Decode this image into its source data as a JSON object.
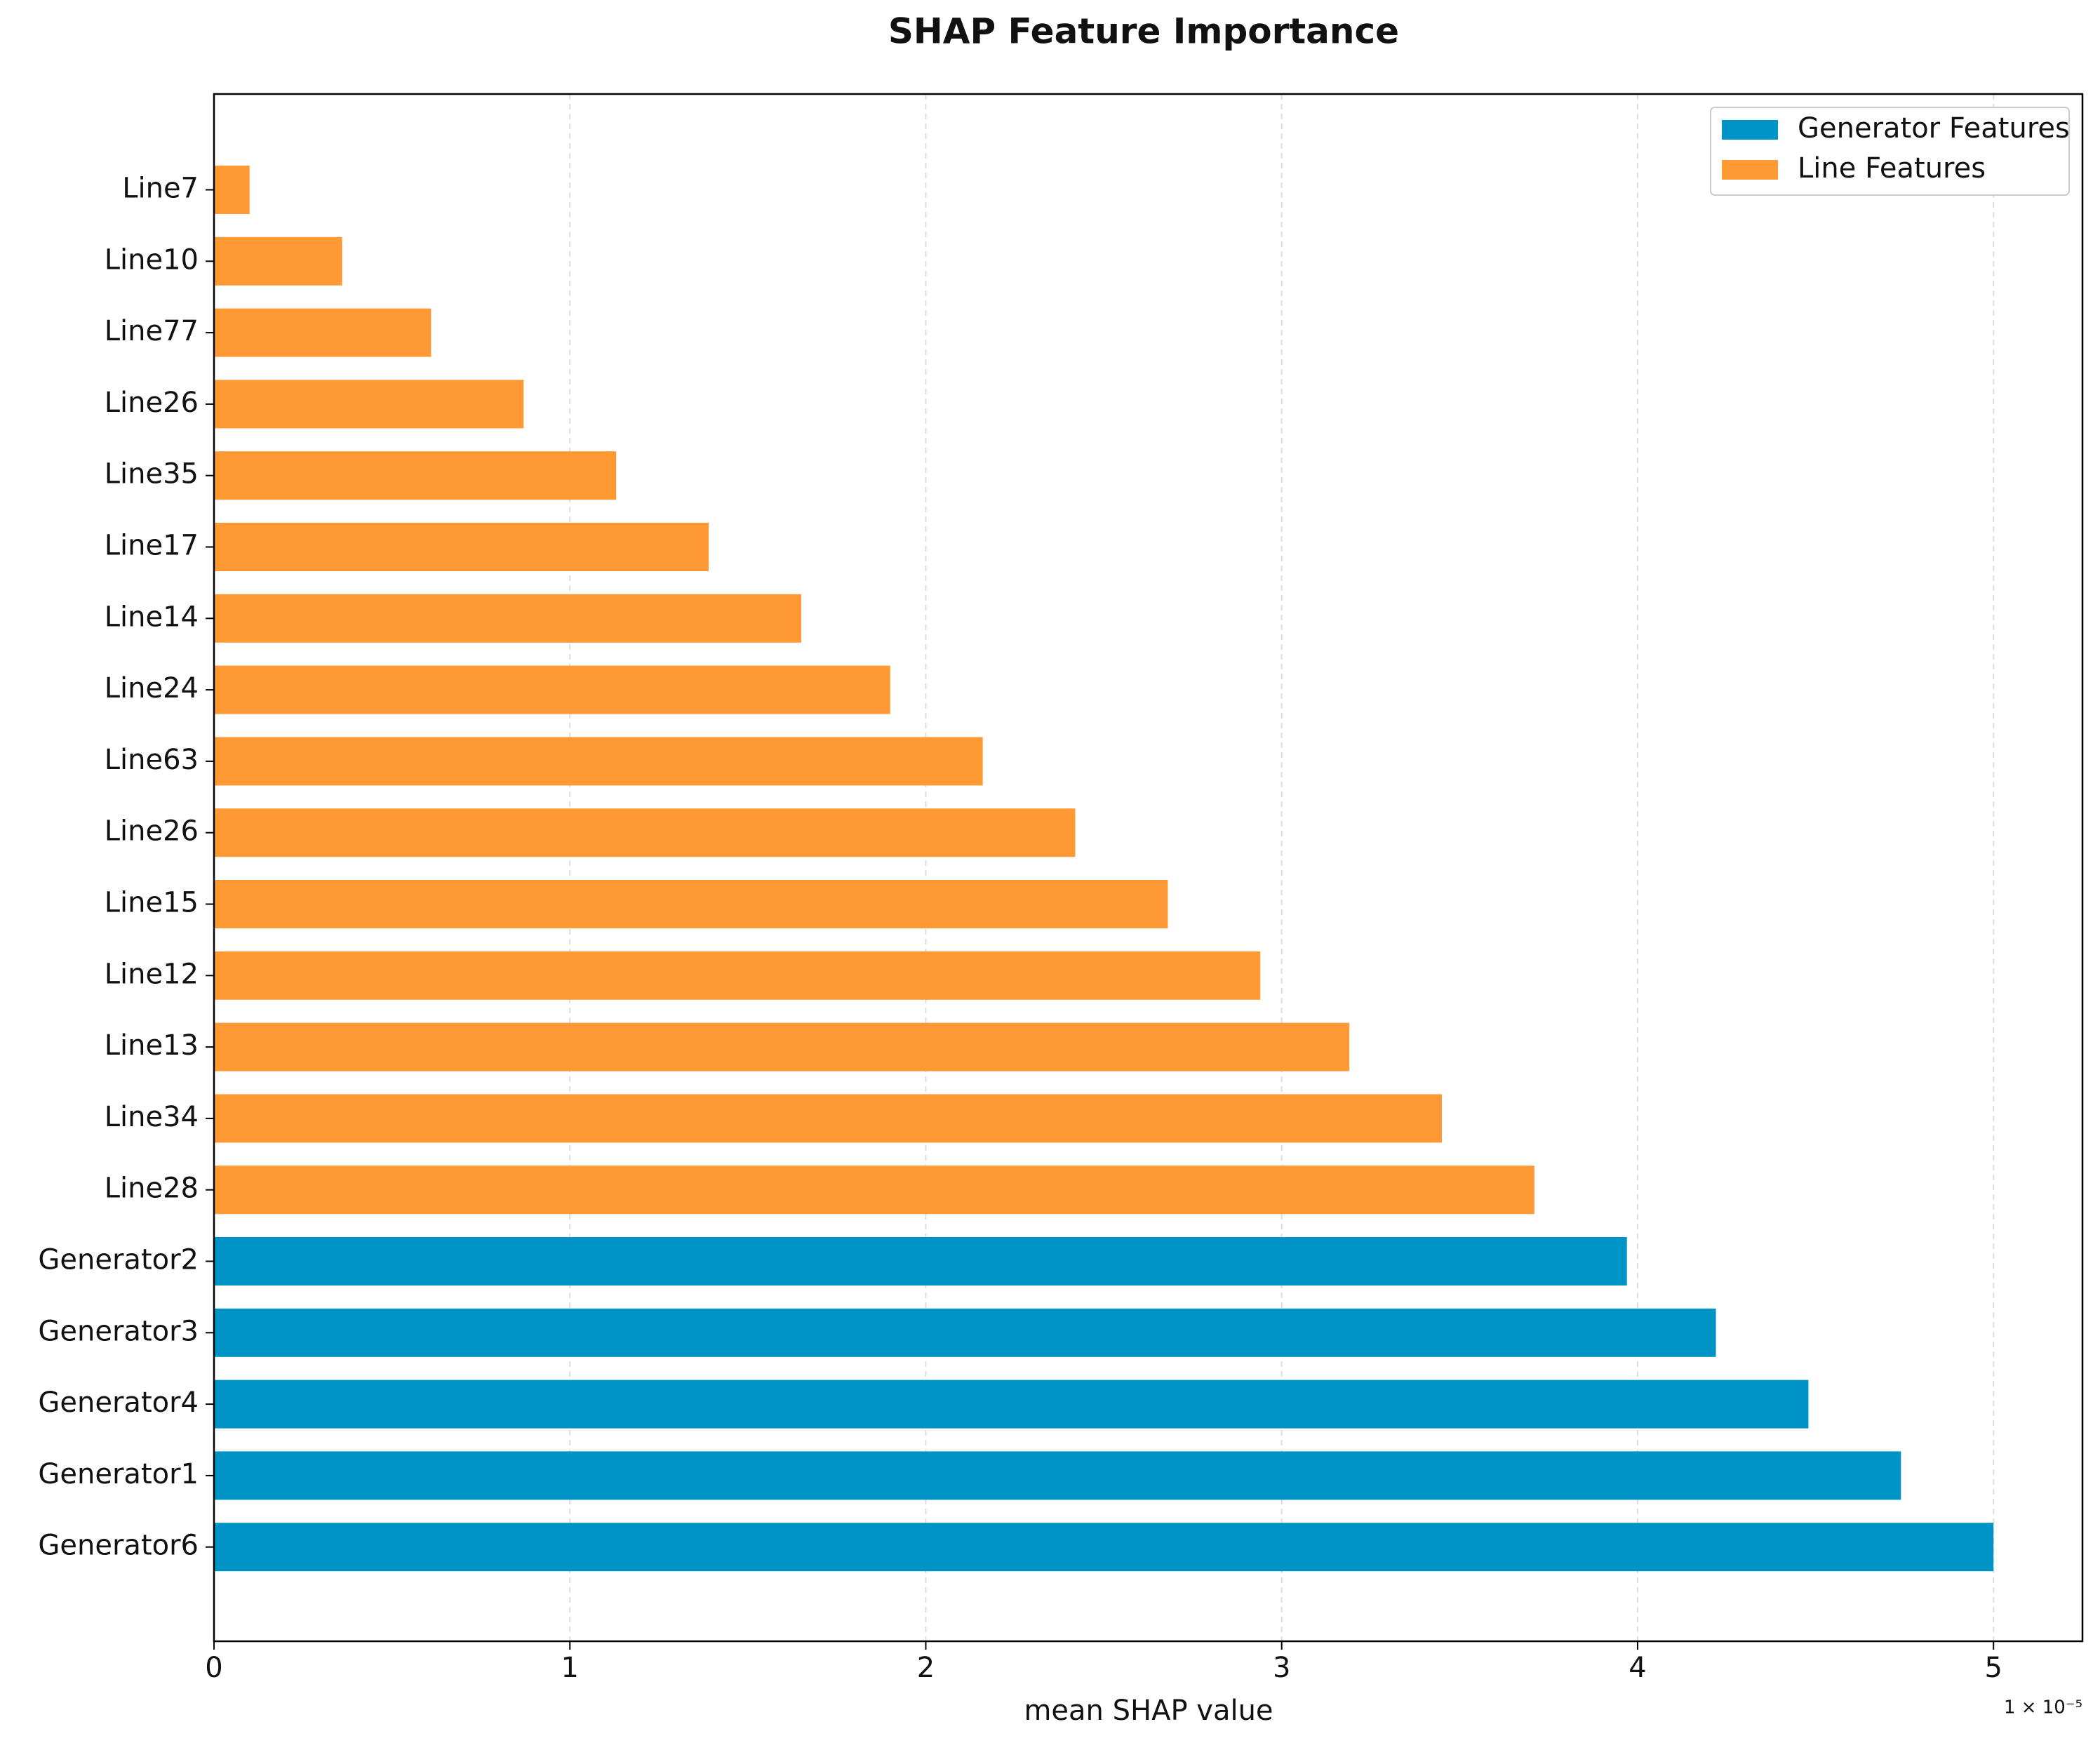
{
  "chart_data": {
    "type": "barh",
    "title": "SHAP Feature Importance",
    "x_label": "mean SHAP value",
    "x_multiplier": "1 × 10⁻⁵",
    "categories": [
      "Line7",
      "Line10",
      "Line77",
      "Line26",
      "Line35",
      "Line17",
      "Line14",
      "Line24",
      "Line63",
      "Line26",
      "Line15",
      "Line12",
      "Line13",
      "Line34",
      "Line28",
      "Generator2",
      "Generator3",
      "Generator4",
      "Generator1",
      "Generator6"
    ],
    "series": [
      {
        "name": "Generator Features",
        "color": "#0094c6",
        "values": [
          null,
          null,
          null,
          null,
          null,
          null,
          null,
          null,
          null,
          null,
          null,
          null,
          null,
          null,
          null,
          3.97,
          4.22,
          4.48,
          4.74,
          5.0
        ]
      },
      {
        "name": "Line Features",
        "color": "#ff9933",
        "values": [
          0.1,
          0.36,
          0.61,
          0.87,
          1.13,
          1.39,
          1.65,
          1.9,
          2.16,
          2.42,
          2.68,
          2.94,
          3.19,
          3.45,
          3.71,
          null,
          null,
          null,
          null,
          null
        ]
      }
    ],
    "xlim": [
      0,
      5.25
    ],
    "xticks": [
      0,
      1,
      2,
      3,
      4,
      5
    ],
    "grid": true,
    "legend": "upper right"
  }
}
